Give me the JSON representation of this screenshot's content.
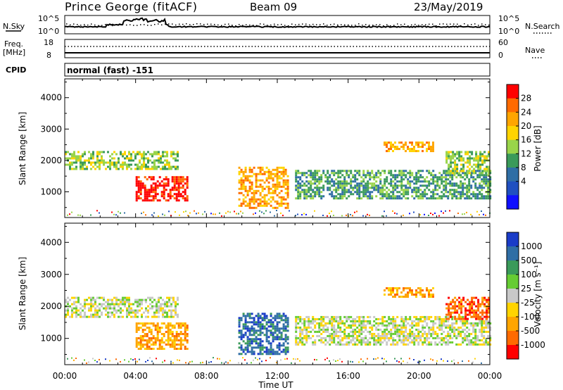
{
  "header": {
    "station": "Prince George (fitACF)",
    "beam": "Beam 09",
    "date": "23/May/2019"
  },
  "strips": {
    "nsky_label": "N.Sky",
    "nsky_ticks": [
      "10^5",
      "10^0"
    ],
    "nsearch_label": "N.Search",
    "nsearch_ticks": [
      "10^5",
      "10^0"
    ],
    "freq_label_line1": "Freq.",
    "freq_label_line2": "[MHz]",
    "freq_ticks": [
      "18",
      "8"
    ],
    "nave_label": "Nave",
    "nave_ticks": [
      "60",
      "0"
    ],
    "cpid_label": "CPID",
    "cpid_value": "normal (fast) -151"
  },
  "chart_data": [
    {
      "type": "heatmap",
      "panel": "power",
      "ylabel": "Slant Range [km]",
      "xlabel": "Time UT",
      "yticks": [
        1000,
        2000,
        3000,
        4000
      ],
      "ylim": [
        180,
        4600
      ],
      "xlim": [
        0,
        24
      ],
      "xtick_labels": [
        "00:00",
        "04:00",
        "08:00",
        "12:00",
        "16:00",
        "20:00",
        "00:00"
      ],
      "colorbar": {
        "label": "Power [dB]",
        "ticks": [
          "28",
          "24",
          "20",
          "16",
          "12",
          "8",
          "4"
        ],
        "colors": [
          "#ff0000",
          "#ff6a00",
          "#ffa500",
          "#ffd400",
          "#99d44a",
          "#3a9a5a",
          "#2f6ea5",
          "#2050c0",
          "#1010ff"
        ]
      },
      "echo_regions": [
        {
          "t_start": 0.0,
          "t_end": 6.4,
          "range_start": 1700,
          "range_end": 2300,
          "level": "12"
        },
        {
          "t_start": 4.0,
          "t_end": 6.9,
          "range_start": 700,
          "range_end": 1500,
          "level": "28"
        },
        {
          "t_start": 9.8,
          "t_end": 12.6,
          "range_start": 500,
          "range_end": 1800,
          "level": "20"
        },
        {
          "t_start": 13.0,
          "t_end": 24.0,
          "range_start": 800,
          "range_end": 1700,
          "level": "8"
        },
        {
          "t_start": 18.0,
          "t_end": 20.8,
          "range_start": 2300,
          "range_end": 2600,
          "level": "20"
        },
        {
          "t_start": 21.5,
          "t_end": 24.0,
          "range_start": 1600,
          "range_end": 2300,
          "level": "12"
        }
      ]
    },
    {
      "type": "heatmap",
      "panel": "velocity",
      "ylabel": "Slant Range [km]",
      "xlabel": "Time UT",
      "yticks": [
        1000,
        2000,
        3000,
        4000
      ],
      "ylim": [
        180,
        4600
      ],
      "xlim": [
        0,
        24
      ],
      "xtick_labels": [
        "00:00",
        "04:00",
        "08:00",
        "12:00",
        "16:00",
        "20:00",
        "00:00"
      ],
      "colorbar": {
        "label": "Velocity [m s⁻¹]",
        "ticks": [
          "1000",
          "500",
          "100",
          "25",
          "-25",
          "-100",
          "-500",
          "-1000"
        ],
        "colors": [
          "#1a3cc8",
          "#2f6ea5",
          "#3a9a5a",
          "#66cc33",
          "#c8c8c8",
          "#ffd400",
          "#ffa500",
          "#ff6a00",
          "#ff0000"
        ]
      },
      "echo_regions": [
        {
          "t_start": 0.0,
          "t_end": 6.4,
          "range_start": 1700,
          "range_end": 2300,
          "level": "-25"
        },
        {
          "t_start": 4.0,
          "t_end": 6.9,
          "range_start": 700,
          "range_end": 1500,
          "level": "-500"
        },
        {
          "t_start": 9.8,
          "t_end": 12.6,
          "range_start": 500,
          "range_end": 1800,
          "level": "500"
        },
        {
          "t_start": 13.0,
          "t_end": 24.0,
          "range_start": 800,
          "range_end": 1700,
          "level": "-25"
        },
        {
          "t_start": 18.0,
          "t_end": 20.8,
          "range_start": 2300,
          "range_end": 2600,
          "level": "-500"
        },
        {
          "t_start": 21.5,
          "t_end": 24.0,
          "range_start": 1600,
          "range_end": 2300,
          "level": "-1000"
        }
      ]
    }
  ]
}
